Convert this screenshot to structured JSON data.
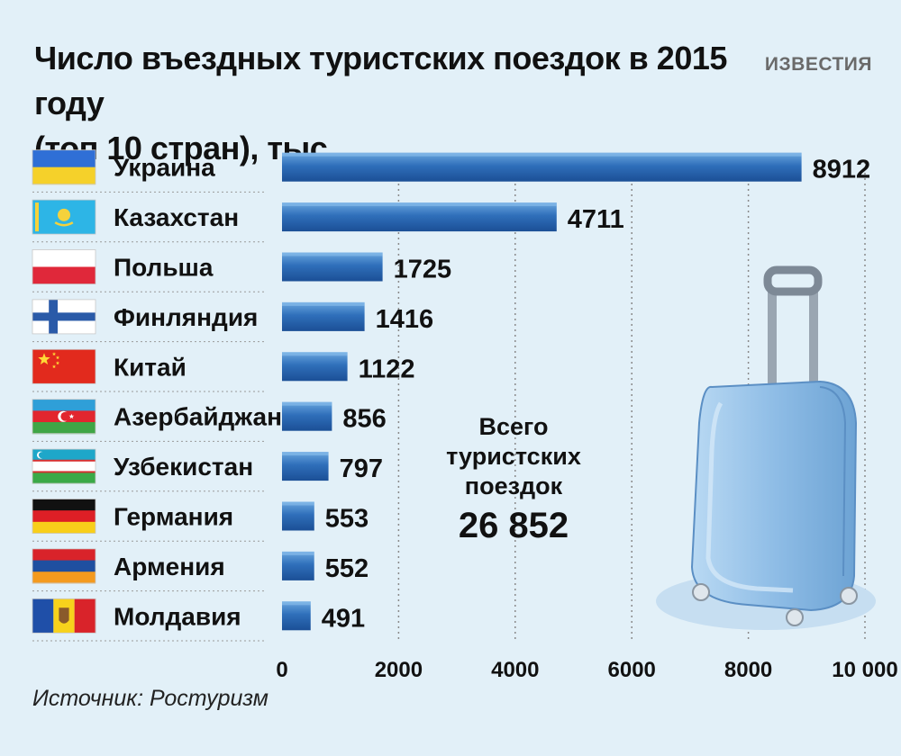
{
  "title": {
    "line1": "Число въездных туристских поездок в 2015 году",
    "line2": "(топ 10 стран), тыс."
  },
  "brand": "ИЗВЕСТИЯ",
  "total": {
    "label_lines": [
      "Всего",
      "туристских",
      "поездок"
    ],
    "value": "26 852"
  },
  "source": "Источник: Ростуризм",
  "colors": {
    "background": "#e2f0f8",
    "bar_dark": "#1f5aa6",
    "bar_light": "#5b9bd8",
    "suitcase": "#8fbde6"
  },
  "chart_data": {
    "type": "bar",
    "orientation": "horizontal",
    "title": "Число въездных туристских поездок в 2015 году (топ 10 стран), тыс.",
    "categories": [
      "Украина",
      "Казахстан",
      "Польша",
      "Финляндия",
      "Китай",
      "Азербайджан",
      "Узбекистан",
      "Германия",
      "Армения",
      "Молдавия"
    ],
    "values": [
      8912,
      4711,
      1725,
      1416,
      1122,
      856,
      797,
      553,
      552,
      491
    ],
    "value_labels": [
      "8912",
      "4711",
      "1725",
      "1416",
      "1122",
      "856",
      "797",
      "553",
      "552",
      "491"
    ],
    "flags": [
      "flag-ukraine",
      "flag-kazakhstan",
      "flag-poland",
      "flag-finland",
      "flag-china",
      "flag-azerbaijan",
      "flag-uzbekistan",
      "flag-germany",
      "flag-armenia",
      "flag-moldova"
    ],
    "xlim": [
      0,
      10000
    ],
    "xticks": [
      0,
      2000,
      4000,
      6000,
      8000,
      10000
    ],
    "xtick_labels": [
      "0",
      "2000",
      "4000",
      "6000",
      "8000",
      "10 000"
    ],
    "grid": "vertical dotted",
    "xlabel": "",
    "ylabel": ""
  }
}
